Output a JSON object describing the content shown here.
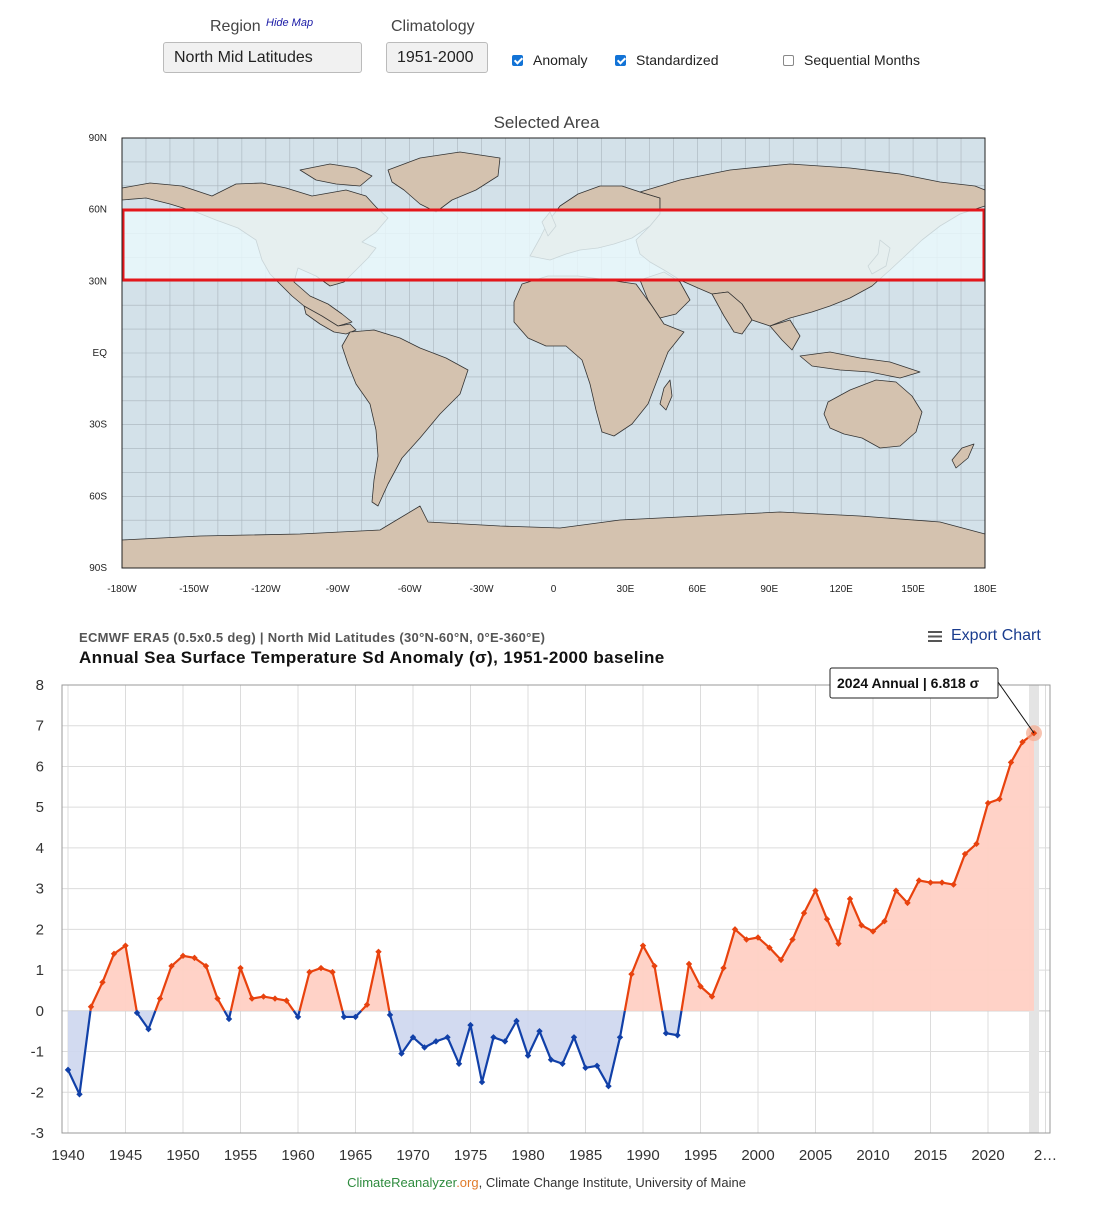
{
  "controls": {
    "region_label": "Region",
    "hide_map_label": "Hide Map",
    "region_value": "North Mid Latitudes",
    "climatology_label": "Climatology",
    "climatology_value": "1951-2000",
    "anomaly_label": "Anomaly",
    "anomaly_checked": true,
    "standardized_label": "Standardized",
    "standardized_checked": true,
    "sequential_label": "Sequential Months",
    "sequential_checked": false
  },
  "map": {
    "title": "Selected Area",
    "lat_labels": [
      "90N",
      "60N",
      "30N",
      "EQ",
      "30S",
      "60S",
      "90S"
    ],
    "lon_labels": [
      "-180W",
      "-150W",
      "-120W",
      "-90W",
      "-60W",
      "-30W",
      "0",
      "30E",
      "60E",
      "90E",
      "120E",
      "150E",
      "180E"
    ],
    "colors": {
      "ocean": "#d3e1e9",
      "land": "#d4c2af",
      "selection_fill": "#eaf9fd",
      "selection_border": "#e4161b"
    }
  },
  "export_label": "Export Chart",
  "chart_data": {
    "type": "line",
    "subtitle": "ECMWF ERA5 (0.5x0.5 deg) | North Mid Latitudes (30°N-60°N, 0°E-360°E)",
    "title": "Annual Sea Surface Temperature Sd Anomaly (σ), 1951-2000 baseline",
    "xlabel": "",
    "ylabel": "",
    "ylim": [
      -3,
      8
    ],
    "yticks": [
      "8",
      "7",
      "6",
      "5",
      "4",
      "3",
      "2",
      "1",
      "0",
      "-1",
      "-2",
      "-3"
    ],
    "xticks": [
      "1940",
      "1945",
      "1950",
      "1955",
      "1960",
      "1965",
      "1970",
      "1975",
      "1980",
      "1985",
      "1990",
      "1995",
      "2000",
      "2005",
      "2010",
      "2015",
      "2020",
      "2…"
    ],
    "x": [
      1940,
      1941,
      1942,
      1943,
      1944,
      1945,
      1946,
      1947,
      1948,
      1949,
      1950,
      1951,
      1952,
      1953,
      1954,
      1955,
      1956,
      1957,
      1958,
      1959,
      1960,
      1961,
      1962,
      1963,
      1964,
      1965,
      1966,
      1967,
      1968,
      1969,
      1970,
      1971,
      1972,
      1973,
      1974,
      1975,
      1976,
      1977,
      1978,
      1979,
      1980,
      1981,
      1982,
      1983,
      1984,
      1985,
      1986,
      1987,
      1988,
      1989,
      1990,
      1991,
      1992,
      1993,
      1994,
      1995,
      1996,
      1997,
      1998,
      1999,
      2000,
      2001,
      2002,
      2003,
      2004,
      2005,
      2006,
      2007,
      2008,
      2009,
      2010,
      2011,
      2012,
      2013,
      2014,
      2015,
      2016,
      2017,
      2018,
      2019,
      2020,
      2021,
      2022,
      2023,
      2024
    ],
    "values": [
      -1.45,
      -2.05,
      0.1,
      0.7,
      1.4,
      1.6,
      -0.05,
      -0.45,
      0.3,
      1.1,
      1.35,
      1.3,
      1.1,
      0.3,
      -0.2,
      1.05,
      0.3,
      0.35,
      0.3,
      0.25,
      -0.15,
      0.95,
      1.05,
      0.95,
      -0.15,
      -0.15,
      0.15,
      1.45,
      -0.1,
      -1.05,
      -0.65,
      -0.9,
      -0.75,
      -0.65,
      -1.3,
      -0.35,
      -1.75,
      -0.65,
      -0.75,
      -0.25,
      -1.1,
      -0.5,
      -1.2,
      -1.3,
      -0.65,
      -1.4,
      -1.35,
      -1.85,
      -0.65,
      0.9,
      1.6,
      1.1,
      -0.55,
      -0.6,
      1.15,
      0.6,
      0.35,
      1.05,
      2.0,
      1.75,
      1.8,
      1.55,
      1.25,
      1.75,
      2.4,
      2.95,
      2.25,
      1.65,
      2.75,
      2.1,
      1.95,
      2.2,
      2.95,
      2.65,
      3.2,
      3.15,
      3.15,
      3.1,
      3.85,
      4.1,
      5.1,
      5.2,
      6.1,
      6.6,
      6.818
    ],
    "positive_color": "#e8420e",
    "negative_color": "#1140a8",
    "positive_fill": "#ffd0c4",
    "negative_fill": "#cdd6ee",
    "tooltip": "2024 Annual | 6.818 σ",
    "highlight_year": 2024
  },
  "footer": {
    "part1": "Climate",
    "part2": "Reanalyzer",
    "part3": ".org",
    "part4": ", Climate Change Institute, University of Maine"
  }
}
